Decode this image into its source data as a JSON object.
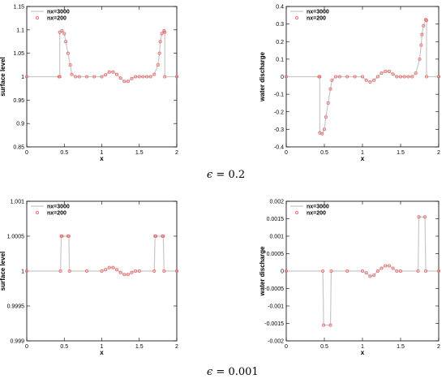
{
  "captions": [
    {
      "symbol": "ϵ",
      "text": "= 0.2"
    },
    {
      "symbol": "ϵ",
      "text": "= 0.001"
    }
  ],
  "chart_data": [
    {
      "type": "line",
      "xlabel": "x",
      "ylabel": "surface level",
      "xlim": [
        0,
        2
      ],
      "ylim": [
        0.85,
        1.15
      ],
      "xticks": [
        "0",
        "0.5",
        "1",
        "1.5",
        "2"
      ],
      "yticks": [
        "0.85",
        "0.9",
        "0.95",
        "1",
        "1.05",
        "1.1",
        "1.15"
      ],
      "legend": "top-left",
      "series": [
        {
          "name": "nx=3000",
          "color": "#c8c8c8",
          "style": "line",
          "x": [
            0,
            0.43,
            0.44,
            0.44,
            0.47,
            0.5,
            0.52,
            0.55,
            0.58,
            0.6,
            0.65,
            0.7,
            0.8,
            0.9,
            1.0,
            1.05,
            1.1,
            1.15,
            1.2,
            1.25,
            1.3,
            1.35,
            1.4,
            1.45,
            1.5,
            1.55,
            1.6,
            1.65,
            1.7,
            1.75,
            1.77,
            1.78,
            1.8,
            1.83,
            1.84,
            1.84,
            2.0
          ],
          "y": [
            1.0,
            1.0,
            1.0,
            1.095,
            1.098,
            1.092,
            1.075,
            1.05,
            1.025,
            1.005,
            1.0,
            1.0,
            1.0,
            1.0,
            1.0,
            1.004,
            1.01,
            1.01,
            1.005,
            0.997,
            0.99,
            0.99,
            0.996,
            1.0,
            1.0,
            1.0,
            1.0,
            1.0,
            1.005,
            1.025,
            1.05,
            1.075,
            1.092,
            1.098,
            1.095,
            1.0,
            1.0
          ]
        },
        {
          "name": "nx=200",
          "color": "#e87070",
          "style": "markers",
          "x": [
            0,
            0.43,
            0.44,
            0.44,
            0.47,
            0.5,
            0.52,
            0.55,
            0.58,
            0.6,
            0.65,
            0.7,
            0.8,
            0.9,
            1.0,
            1.05,
            1.1,
            1.15,
            1.2,
            1.25,
            1.3,
            1.35,
            1.4,
            1.45,
            1.5,
            1.55,
            1.6,
            1.65,
            1.7,
            1.75,
            1.77,
            1.78,
            1.8,
            1.83,
            1.84,
            1.84,
            2.0
          ],
          "y": [
            1.0,
            1.0,
            1.0,
            1.095,
            1.098,
            1.092,
            1.075,
            1.05,
            1.025,
            1.005,
            1.0,
            1.0,
            1.0,
            1.0,
            1.0,
            1.004,
            1.01,
            1.01,
            1.005,
            0.997,
            0.99,
            0.99,
            0.996,
            1.0,
            1.0,
            1.0,
            1.0,
            1.0,
            1.005,
            1.025,
            1.05,
            1.075,
            1.092,
            1.098,
            1.095,
            1.0,
            1.0
          ]
        }
      ]
    },
    {
      "type": "line",
      "xlabel": "x",
      "ylabel": "water discharge",
      "xlim": [
        0,
        2
      ],
      "ylim": [
        -0.4,
        0.4
      ],
      "xticks": [
        "0",
        "0.5",
        "1",
        "1.5",
        "2"
      ],
      "yticks": [
        "-0.4",
        "-0.3",
        "-0.2",
        "-0.1",
        "0",
        "0.1",
        "0.2",
        "0.3",
        "0.4"
      ],
      "legend": "top-left",
      "series": [
        {
          "name": "nx=3000",
          "color": "#c8c8c8",
          "style": "line",
          "x": [
            0,
            0.43,
            0.44,
            0.44,
            0.47,
            0.5,
            0.52,
            0.55,
            0.58,
            0.6,
            0.65,
            0.7,
            0.8,
            0.9,
            1.0,
            1.05,
            1.1,
            1.15,
            1.2,
            1.25,
            1.3,
            1.35,
            1.4,
            1.45,
            1.5,
            1.55,
            1.6,
            1.65,
            1.7,
            1.75,
            1.77,
            1.78,
            1.8,
            1.83,
            1.84,
            1.84,
            2.0
          ],
          "y": [
            0,
            0,
            0,
            -0.32,
            -0.325,
            -0.3,
            -0.23,
            -0.15,
            -0.07,
            -0.02,
            0,
            0,
            0,
            0,
            0,
            -0.02,
            -0.03,
            -0.02,
            0.0,
            0.02,
            0.03,
            0.03,
            0.015,
            0,
            0,
            0,
            0,
            0,
            0.02,
            0.1,
            0.18,
            0.24,
            0.29,
            0.325,
            0.32,
            0,
            0
          ]
        },
        {
          "name": "nx=200",
          "color": "#e87070",
          "style": "markers",
          "x": [
            0,
            0.43,
            0.44,
            0.44,
            0.47,
            0.5,
            0.52,
            0.55,
            0.58,
            0.6,
            0.65,
            0.7,
            0.8,
            0.9,
            1.0,
            1.05,
            1.1,
            1.15,
            1.2,
            1.25,
            1.3,
            1.35,
            1.4,
            1.45,
            1.5,
            1.55,
            1.6,
            1.65,
            1.7,
            1.75,
            1.77,
            1.78,
            1.8,
            1.83,
            1.84,
            1.84,
            2.0
          ],
          "y": [
            0,
            0,
            0,
            -0.32,
            -0.325,
            -0.3,
            -0.23,
            -0.15,
            -0.07,
            -0.02,
            0,
            0,
            0,
            0,
            0,
            -0.02,
            -0.03,
            -0.02,
            0.0,
            0.02,
            0.03,
            0.03,
            0.015,
            0,
            0,
            0,
            0,
            0,
            0.02,
            0.1,
            0.18,
            0.24,
            0.29,
            0.325,
            0.32,
            0,
            0
          ]
        }
      ]
    },
    {
      "type": "line",
      "xlabel": "x",
      "ylabel": "surface level",
      "xlim": [
        0,
        2
      ],
      "ylim": [
        0.999,
        1.001
      ],
      "xticks": [
        "0",
        "0.5",
        "1",
        "1.5",
        "2"
      ],
      "yticks": [
        "0.999",
        "0.9995",
        "1",
        "1.0005",
        "1.001"
      ],
      "legend": "top-left",
      "series": [
        {
          "name": "nx=3000",
          "color": "#c8c8c8",
          "style": "line",
          "x": [
            0,
            0.45,
            0.46,
            0.47,
            0.55,
            0.56,
            0.57,
            0.8,
            1.0,
            1.05,
            1.1,
            1.15,
            1.2,
            1.25,
            1.3,
            1.35,
            1.4,
            1.45,
            1.5,
            1.7,
            1.71,
            1.72,
            1.81,
            1.82,
            1.83,
            2.0
          ],
          "y": [
            1.0,
            1.0,
            1.0005,
            1.0005,
            1.0005,
            1.0005,
            1.0,
            1.0,
            1.0,
            1.00002,
            1.00005,
            1.00005,
            1.00002,
            0.99998,
            0.99995,
            0.99995,
            0.99998,
            1.0,
            1.0,
            1.0,
            1.0005,
            1.0005,
            1.0005,
            1.0005,
            1.0,
            1.0
          ]
        },
        {
          "name": "nx=200",
          "color": "#e87070",
          "style": "markers",
          "x": [
            0,
            0.45,
            0.46,
            0.47,
            0.55,
            0.56,
            0.57,
            0.8,
            1.0,
            1.05,
            1.1,
            1.15,
            1.2,
            1.25,
            1.3,
            1.35,
            1.4,
            1.45,
            1.5,
            1.7,
            1.71,
            1.72,
            1.81,
            1.82,
            1.83,
            2.0
          ],
          "y": [
            1.0,
            1.0,
            1.0005,
            1.0005,
            1.0005,
            1.0005,
            1.0,
            1.0,
            1.0,
            1.00002,
            1.00005,
            1.00005,
            1.00002,
            0.99998,
            0.99995,
            0.99995,
            0.99998,
            1.0,
            1.0,
            1.0,
            1.0005,
            1.0005,
            1.0005,
            1.0005,
            1.0,
            1.0
          ]
        }
      ]
    },
    {
      "type": "line",
      "xlabel": "x",
      "ylabel": "water discharge",
      "xlim": [
        0,
        2
      ],
      "ylim": [
        -0.002,
        0.002
      ],
      "xticks": [
        "0",
        "0.5",
        "1",
        "1.5",
        "2"
      ],
      "yticks": [
        "-0.002",
        "-0.0015",
        "-0.001",
        "-0.0005",
        "0",
        "0.0005",
        "0.001",
        "0.0015",
        "0.002"
      ],
      "legend": "top-left",
      "series": [
        {
          "name": "nx=3000",
          "color": "#c8c8c8",
          "style": "line",
          "x": [
            0,
            0.48,
            0.49,
            0.58,
            0.59,
            0.8,
            1.0,
            1.05,
            1.1,
            1.15,
            1.2,
            1.25,
            1.3,
            1.35,
            1.4,
            1.45,
            1.5,
            1.73,
            1.74,
            1.82,
            1.83,
            2.0
          ],
          "y": [
            0,
            0,
            -0.00155,
            -0.00155,
            0,
            0,
            0,
            -5e-05,
            -0.00015,
            -0.00012,
            0,
            8e-05,
            0.00015,
            0.00015,
            8e-05,
            0,
            0,
            0,
            0.00155,
            0.00155,
            0,
            0
          ]
        },
        {
          "name": "nx=200",
          "color": "#e87070",
          "style": "markers",
          "x": [
            0,
            0.48,
            0.49,
            0.58,
            0.59,
            0.8,
            1.0,
            1.05,
            1.1,
            1.15,
            1.2,
            1.25,
            1.3,
            1.35,
            1.4,
            1.45,
            1.5,
            1.73,
            1.74,
            1.82,
            1.83,
            2.0
          ],
          "y": [
            0,
            0,
            -0.00155,
            -0.00155,
            0,
            0,
            0,
            -5e-05,
            -0.00015,
            -0.00012,
            0,
            8e-05,
            0.00015,
            0.00015,
            8e-05,
            0,
            0,
            0,
            0.00155,
            0.00155,
            0,
            0
          ]
        }
      ]
    }
  ]
}
